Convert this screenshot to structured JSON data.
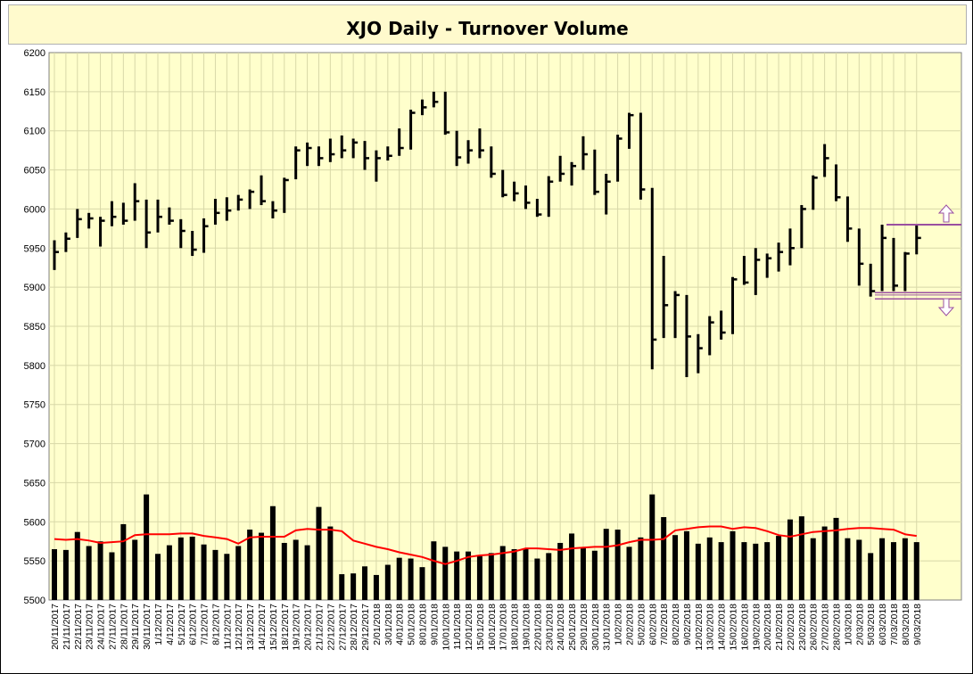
{
  "chart_data": {
    "type": "bar",
    "title": "XJO Daily - Turnover Volume",
    "ylim": [
      5500,
      6200
    ],
    "yticks": [
      5500,
      5550,
      5600,
      5650,
      5700,
      5750,
      5800,
      5850,
      5900,
      5950,
      6000,
      6050,
      6100,
      6150,
      6200
    ],
    "grid": true,
    "colors": {
      "plot_bg": "#ffffcc",
      "grid": "#d8d8a8",
      "price_bars": "#000000",
      "volume_bars": "#000000",
      "moving_average": "#ff0000",
      "range_lines": "#9a4fa0"
    },
    "dates": [
      "20/11/2017",
      "21/11/2017",
      "22/11/2017",
      "23/11/2017",
      "24/11/2017",
      "27/11/2017",
      "28/11/2017",
      "29/11/2017",
      "30/11/2017",
      "1/12/2017",
      "4/12/2017",
      "5/12/2017",
      "6/12/2017",
      "7/12/2017",
      "8/12/2017",
      "11/12/2017",
      "12/12/2017",
      "13/12/2017",
      "14/12/2017",
      "15/12/2017",
      "18/12/2017",
      "19/12/2017",
      "20/12/2017",
      "21/12/2017",
      "22/12/2017",
      "27/12/2017",
      "28/12/2017",
      "29/12/2017",
      "2/01/2018",
      "3/01/2018",
      "4/01/2018",
      "5/01/2018",
      "8/01/2018",
      "9/01/2018",
      "10/01/2018",
      "11/01/2018",
      "12/01/2018",
      "15/01/2018",
      "16/01/2018",
      "17/01/2018",
      "18/01/2018",
      "19/01/2018",
      "22/01/2018",
      "23/01/2018",
      "24/01/2018",
      "25/01/2018",
      "29/01/2018",
      "30/01/2018",
      "31/01/2018",
      "1/02/2018",
      "2/02/2018",
      "5/02/2018",
      "6/02/2018",
      "7/02/2018",
      "8/02/2018",
      "9/02/2018",
      "12/02/2018",
      "13/02/2018",
      "14/02/2018",
      "15/02/2018",
      "16/02/2018",
      "19/02/2018",
      "20/02/2018",
      "21/02/2018",
      "22/02/2018",
      "23/02/2018",
      "26/02/2018",
      "27/02/2018",
      "28/02/2018",
      "1/03/2018",
      "2/03/2018",
      "5/03/2018",
      "6/03/2018",
      "7/03/2018",
      "8/03/2018",
      "9/03/2018"
    ],
    "xtick_labels": [
      "20/11/2017",
      "21/11/2017",
      "22/11/2017",
      "23/11/2017",
      "24/11/2017",
      "27/11/2017",
      "28/11/2017",
      "29/11/2017",
      "30/11/2017",
      "1/12/2017",
      "4/12/2017",
      "5/12/2017",
      "6/12/2017",
      "7/12/2017",
      "8/12/2017",
      "11/12/2017",
      "12/12/2017",
      "13/12/2017",
      "14/12/2017",
      "15/12/2017",
      "18/12/2017",
      "19/12/2017",
      "20/12/2017",
      "21/12/2017",
      "22/12/2017",
      "27/12/2017",
      "28/12/2017",
      "29/12/2017",
      "2/01/2018",
      "3/01/2018",
      "4/01/2018",
      "5/01/2018",
      "8/01/2018",
      "9/01/2018",
      "10/01/2018",
      "11/01/2018",
      "12/01/2018",
      "15/01/2018",
      "16/01/2018",
      "17/01/2018",
      "18/01/2018",
      "19/01/2018",
      "22/01/2018",
      "23/01/2018",
      "24/01/2018",
      "25/01/2018",
      "29/01/2018",
      "30/01/2018",
      "31/01/2018",
      "1/02/2018",
      "2/02/2018",
      "5/02/2018",
      "6/02/2018",
      "7/02/2018",
      "8/02/2018",
      "9/02/2018",
      "12/02/2018",
      "13/02/2018",
      "14/02/2018",
      "15/02/2018",
      "16/02/2018",
      "19/02/2018",
      "20/02/2018",
      "21/02/2018",
      "22/02/2018",
      "23/02/2018",
      "26/02/2018",
      "27/02/2018",
      "28/02/2018",
      "1/03/2018",
      "2/03/2018",
      "5/03/2018",
      "6/03/2018",
      "7/03/2018",
      "8/03/2018",
      "9/03/2018"
    ],
    "price_hlc": [
      [
        5960,
        5922,
        5945
      ],
      [
        5970,
        5945,
        5962
      ],
      [
        6000,
        5963,
        5987
      ],
      [
        5995,
        5975,
        5988
      ],
      [
        5990,
        5952,
        5985
      ],
      [
        6010,
        5978,
        5990
      ],
      [
        6008,
        5980,
        5985
      ],
      [
        6033,
        5985,
        6010
      ],
      [
        6012,
        5950,
        5970
      ],
      [
        6012,
        5970,
        5990
      ],
      [
        6002,
        5980,
        5985
      ],
      [
        5987,
        5950,
        5972
      ],
      [
        5972,
        5940,
        5948
      ],
      [
        5988,
        5944,
        5978
      ],
      [
        6013,
        5980,
        5995
      ],
      [
        6015,
        5985,
        5998
      ],
      [
        6018,
        5998,
        6012
      ],
      [
        6025,
        6000,
        6022
      ],
      [
        6043,
        6005,
        6010
      ],
      [
        6010,
        5988,
        5998
      ],
      [
        6040,
        5995,
        6037
      ],
      [
        6080,
        6038,
        6075
      ],
      [
        6085,
        6055,
        6078
      ],
      [
        6080,
        6055,
        6065
      ],
      [
        6090,
        6060,
        6070
      ],
      [
        6094,
        6065,
        6075
      ],
      [
        6090,
        6065,
        6085
      ],
      [
        6087,
        6050,
        6065
      ],
      [
        6075,
        6035,
        6065
      ],
      [
        6080,
        6062,
        6068
      ],
      [
        6103,
        6068,
        6078
      ],
      [
        6127,
        6076,
        6123
      ],
      [
        6140,
        6120,
        6130
      ],
      [
        6150,
        6130,
        6137
      ],
      [
        6150,
        6095,
        6098
      ],
      [
        6100,
        6055,
        6066
      ],
      [
        6088,
        6058,
        6075
      ],
      [
        6103,
        6065,
        6075
      ],
      [
        6080,
        6040,
        6045
      ],
      [
        6050,
        6015,
        6018
      ],
      [
        6035,
        6010,
        6020
      ],
      [
        6030,
        6000,
        6008
      ],
      [
        6013,
        5990,
        5993
      ],
      [
        6042,
        5990,
        6035
      ],
      [
        6068,
        6035,
        6045
      ],
      [
        6060,
        6030,
        6055
      ],
      [
        6093,
        6050,
        6070
      ],
      [
        6076,
        6018,
        6022
      ],
      [
        6045,
        5993,
        6035
      ],
      [
        6095,
        6035,
        6090
      ],
      [
        6123,
        6077,
        6120
      ],
      [
        6123,
        6012,
        6025
      ],
      [
        6027,
        5795,
        5833
      ],
      [
        5940,
        5835,
        5877
      ],
      [
        5895,
        5835,
        5890
      ],
      [
        5890,
        5785,
        5837
      ],
      [
        5840,
        5790,
        5822
      ],
      [
        5863,
        5813,
        5855
      ],
      [
        5870,
        5833,
        5842
      ],
      [
        5913,
        5840,
        5910
      ],
      [
        5940,
        5903,
        5906
      ],
      [
        5950,
        5890,
        5935
      ],
      [
        5943,
        5912,
        5937
      ],
      [
        5957,
        5920,
        5945
      ],
      [
        5975,
        5928,
        5950
      ],
      [
        6005,
        5950,
        6000
      ],
      [
        6043,
        5999,
        6040
      ],
      [
        6083,
        6041,
        6065
      ],
      [
        6057,
        6010,
        6015
      ],
      [
        6016,
        5958,
        5975
      ],
      [
        5975,
        5902,
        5930
      ],
      [
        5930,
        5888,
        5895
      ],
      [
        5980,
        5895,
        5963
      ],
      [
        5963,
        5895,
        5902
      ],
      [
        5945,
        5895,
        5943
      ],
      [
        5981,
        5942,
        5963
      ]
    ],
    "volume_values": [
      5565,
      5564,
      5587,
      5569,
      5575,
      5561,
      5597,
      5577,
      5635,
      5559,
      5570,
      5580,
      5581,
      5571,
      5564,
      5559,
      5569,
      5590,
      5586,
      5620,
      5573,
      5577,
      5570,
      5619,
      5594,
      5533,
      5534,
      5543,
      5532,
      5545,
      5554,
      5553,
      5542,
      5575,
      5568,
      5562,
      5562,
      5556,
      5560,
      5569,
      5565,
      5565,
      5553,
      5560,
      5573,
      5585,
      5567,
      5563,
      5591,
      5590,
      5568,
      5580,
      5635,
      5606,
      5583,
      5588,
      5572,
      5580,
      5574,
      5588,
      5574,
      5572,
      5574,
      5582,
      5603,
      5607,
      5579,
      5594,
      5605,
      5579,
      5577,
      5560,
      5579,
      5574,
      5579,
      5574
    ],
    "moving_average": [
      5578,
      5577,
      5578,
      5576,
      5573,
      5574,
      5575,
      5583,
      5584,
      5584,
      5584,
      5585,
      5585,
      5582,
      5580,
      5578,
      5572,
      5580,
      5581,
      5581,
      5581,
      5589,
      5591,
      5590,
      5590,
      5588,
      5576,
      5572,
      5568,
      5565,
      5561,
      5558,
      5555,
      5550,
      5546,
      5550,
      5555,
      5557,
      5558,
      5560,
      5562,
      5566,
      5566,
      5565,
      5564,
      5566,
      5567,
      5568,
      5568,
      5570,
      5574,
      5577,
      5577,
      5578,
      5589,
      5591,
      5593,
      5594,
      5594,
      5591,
      5593,
      5592,
      5588,
      5583,
      5581,
      5584,
      5587,
      5588,
      5589,
      5591,
      5592,
      5592,
      5591,
      5590,
      5584,
      5582
    ],
    "range_lines": [
      5980,
      5885,
      5890,
      5893
    ]
  }
}
